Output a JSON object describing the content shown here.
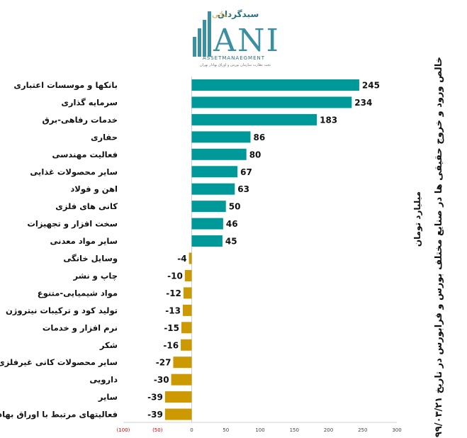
{
  "header": {
    "brand_top": "سبدگردان",
    "brand_top_accent": "مانی",
    "brand_main": "ANI",
    "brand_sub": "ASSETMANAEGMENT",
    "brand_tag": "تحت نظارت سازمان بورس و اوراق بهادار تهران"
  },
  "colors": {
    "positive": "#009999",
    "negative": "#CC9900",
    "brand": "#3a8fa0",
    "neg_tick": "#cc0000"
  },
  "chart_data": {
    "type": "bar",
    "orientation": "horizontal",
    "title": "خالص ورود و خروج حقیقی ها در صنایع مختلف بورس و فرابورس در تاریخ ۹۹/۰۳/۲۱",
    "unit_label": "میلیارد تومان",
    "categories": [
      "بانکها و موسسات اعتباری",
      "سرمایه گذاری",
      "خدمات رفاهی-برق",
      "حفاری",
      "فعالیت مهندسی",
      "سایر محصولات غذایی",
      "اهن و فولاد",
      "کانی های فلزی",
      "سخت افزار و تجهیزات",
      "سایر مواد معدنی",
      "وسایل خانگی",
      "چاپ و نشر",
      "مواد شیمیایی-متنوع",
      "تولید کود و ترکیبات نیتروژن",
      "نرم افزار و خدمات",
      "شکر",
      "سایر محصولات کانی غیرفلزی",
      "دارویی",
      "سایر",
      "فعالیتهای مرتبط با اوراق بهادار"
    ],
    "values": [
      245,
      234,
      183,
      86,
      80,
      67,
      63,
      50,
      46,
      45,
      -4,
      -10,
      -12,
      -13,
      -15,
      -16,
      -27,
      -30,
      -39,
      -39
    ],
    "data_labels": [
      "245",
      "234",
      "183",
      "86",
      "80",
      "67",
      "63",
      "50",
      "46",
      "45",
      "-4",
      "-10",
      "-12",
      "-13",
      "-15",
      "-16",
      "-27",
      "-30",
      "-39",
      "-39"
    ],
    "xlim": [
      -100,
      300
    ],
    "x_ticks": [
      -100,
      -50,
      0,
      50,
      100,
      150,
      200,
      250,
      300
    ],
    "x_tick_labels": [
      "(100)",
      "(50)",
      "0",
      "50",
      "100",
      "150",
      "200",
      "250",
      "300"
    ],
    "grid": false,
    "legend": "none"
  }
}
